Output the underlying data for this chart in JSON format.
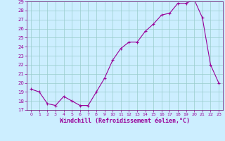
{
  "x": [
    0,
    1,
    2,
    3,
    4,
    5,
    6,
    7,
    8,
    9,
    10,
    11,
    12,
    13,
    14,
    15,
    16,
    17,
    18,
    19,
    20,
    21,
    22,
    23
  ],
  "y": [
    19.3,
    19.0,
    17.7,
    17.5,
    18.5,
    18.0,
    17.5,
    17.5,
    19.0,
    20.5,
    22.5,
    23.8,
    24.5,
    24.5,
    25.7,
    26.5,
    27.5,
    27.7,
    28.8,
    28.8,
    29.2,
    27.2,
    22.0,
    20.0
  ],
  "line_color": "#990099",
  "marker": "+",
  "marker_size": 3,
  "bg_color": "#cceeff",
  "grid_color": "#99cccc",
  "xlabel": "Windchill (Refroidissement éolien,°C)",
  "ylim": [
    17,
    29
  ],
  "xlim": [
    -0.5,
    23.5
  ],
  "yticks": [
    17,
    18,
    19,
    20,
    21,
    22,
    23,
    24,
    25,
    26,
    27,
    28,
    29
  ],
  "xticks": [
    0,
    1,
    2,
    3,
    4,
    5,
    6,
    7,
    8,
    9,
    10,
    11,
    12,
    13,
    14,
    15,
    16,
    17,
    18,
    19,
    20,
    21,
    22,
    23
  ],
  "axis_color": "#660066",
  "tick_color": "#990099",
  "label_color": "#990099"
}
